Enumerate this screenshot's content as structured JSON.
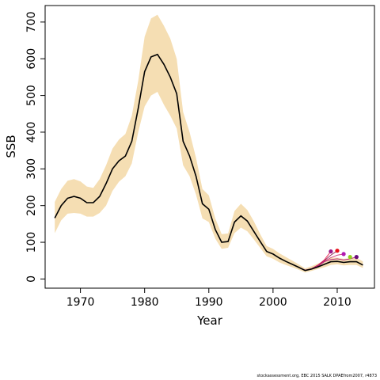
{
  "chart_data": {
    "type": "line",
    "xlabel": "Year",
    "ylabel": "SSB",
    "xlim": [
      1964.5,
      2015.8
    ],
    "ylim": [
      -25,
      745
    ],
    "xticks": [
      1970,
      1980,
      1990,
      2000,
      2010
    ],
    "yticks": [
      0,
      100,
      200,
      300,
      400,
      500,
      600,
      700
    ],
    "grid": false,
    "legend": "none",
    "colors": {
      "band": "#f5deb3",
      "main": "#000000",
      "retro": [
        "#e8174a",
        "#8b1a4a",
        "#cc3377",
        "#b01a7a"
      ],
      "terminal_points": [
        "#9b1a8a",
        "#e8101a",
        "#b01ab0",
        "#8fd11a",
        "#6a0d7a"
      ]
    },
    "series": [
      {
        "x": [
          1966,
          1967,
          1968,
          1969,
          1970,
          1971,
          1972,
          1973,
          1974,
          1975,
          1976,
          1977,
          1978,
          1979,
          1980,
          1981,
          1982,
          1983,
          1984,
          1985,
          1986,
          1987,
          1988,
          1989,
          1990,
          1991,
          1992,
          1993,
          1994,
          1995,
          1996,
          1997,
          1998,
          1999,
          2000,
          2001,
          2002,
          2003,
          2004,
          2005,
          2006,
          2007,
          2008,
          2009,
          2010,
          2011,
          2012,
          2013,
          2014
        ],
        "values": [
          166,
          200,
          220,
          225,
          220,
          208,
          208,
          225,
          260,
          300,
          322,
          335,
          375,
          465,
          565,
          605,
          612,
          585,
          550,
          505,
          375,
          335,
          280,
          205,
          190,
          135,
          100,
          102,
          155,
          172,
          158,
          130,
          102,
          75,
          68,
          57,
          48,
          40,
          32,
          23,
          27,
          33,
          40,
          47,
          48,
          45,
          47,
          47,
          38
        ]
      }
    ],
    "band": {
      "lower": [
        125,
        160,
        178,
        180,
        178,
        170,
        170,
        180,
        200,
        240,
        265,
        280,
        315,
        400,
        470,
        500,
        510,
        475,
        445,
        410,
        310,
        280,
        230,
        165,
        155,
        110,
        82,
        85,
        125,
        140,
        130,
        108,
        85,
        62,
        55,
        45,
        38,
        32,
        25,
        18,
        22,
        27,
        32,
        38,
        40,
        37,
        38,
        38,
        30
      ],
      "upper": [
        210,
        245,
        268,
        272,
        266,
        252,
        248,
        272,
        310,
        355,
        380,
        395,
        445,
        540,
        660,
        710,
        720,
        690,
        655,
        600,
        455,
        400,
        330,
        245,
        228,
        165,
        122,
        124,
        185,
        205,
        188,
        158,
        122,
        90,
        82,
        70,
        60,
        50,
        40,
        29,
        35,
        42,
        50,
        58,
        58,
        55,
        57,
        58,
        48
      ]
    },
    "retrospective": [
      {
        "x": [
          2004,
          2005,
          2006,
          2007,
          2008,
          2009
        ],
        "values": [
          32,
          24,
          28,
          38,
          52,
          75
        ]
      },
      {
        "x": [
          2004,
          2005,
          2006,
          2007,
          2008,
          2009,
          2010
        ],
        "values": [
          32,
          24,
          28,
          37,
          50,
          65,
          77
        ]
      },
      {
        "x": [
          2004,
          2005,
          2006,
          2007,
          2008,
          2009,
          2010,
          2011
        ],
        "values": [
          32,
          24,
          28,
          36,
          49,
          58,
          65,
          68
        ]
      },
      {
        "x": [
          2004,
          2005,
          2006,
          2007,
          2008,
          2009,
          2010,
          2011,
          2012,
          2013
        ],
        "values": [
          32,
          24,
          27,
          35,
          47,
          53,
          55,
          52,
          55,
          60
        ]
      }
    ],
    "terminal_points": [
      {
        "x": 2009,
        "y": 75
      },
      {
        "x": 2010,
        "y": 77
      },
      {
        "x": 2011,
        "y": 68
      },
      {
        "x": 2012,
        "y": 60
      },
      {
        "x": 2013,
        "y": 60
      }
    ]
  },
  "footer": "stockassessment.org, EBC 2015 SALK DPAEfrom2007, r4873"
}
